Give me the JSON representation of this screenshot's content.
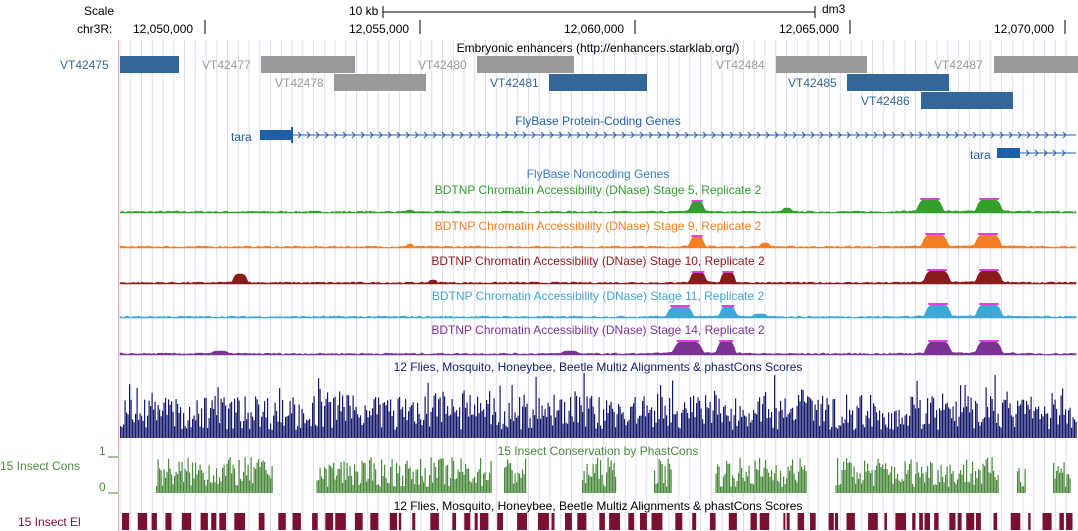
{
  "ruler": {
    "scale_label": "Scale",
    "chrom_label": "chr3R:",
    "scale_bar_label": "10 kb",
    "assembly": "dm3",
    "ticks": [
      "12,050,000",
      "12,055,000",
      "12,060,000",
      "12,065,000",
      "12,070,000"
    ]
  },
  "tracks": {
    "enhancers": {
      "title": "Embryonic enhancers (http://enhancers.starklab.org/)",
      "items": [
        {
          "name": "VT42475",
          "color": "#336699",
          "label": "VT42475"
        },
        {
          "name": "VT42477",
          "color": "#999999",
          "label": "VT42477"
        },
        {
          "name": "VT42478",
          "color": "#999999",
          "label": "VT42478"
        },
        {
          "name": "VT42480",
          "color": "#999999",
          "label": "VT42480"
        },
        {
          "name": "VT42481",
          "color": "#336699",
          "label": "VT42481"
        },
        {
          "name": "VT42484",
          "color": "#999999",
          "label": "VT42484"
        },
        {
          "name": "VT42485",
          "color": "#336699",
          "label": "VT42485"
        },
        {
          "name": "VT42486",
          "color": "#336699",
          "label": "VT42486"
        },
        {
          "name": "VT42487",
          "color": "#999999",
          "label": "VT42487"
        }
      ]
    },
    "coding_genes": {
      "title": "FlyBase Protein-Coding Genes",
      "color": "#1f5fa8",
      "genes": [
        {
          "label": "tara"
        },
        {
          "label": "tara"
        }
      ]
    },
    "noncoding_genes": {
      "title": "FlyBase Noncoding Genes",
      "color": "#3a7dc4"
    },
    "dnase": [
      {
        "title": "BDTNP Chromatin Accessibility (DNase) Stage 5, Replicate 2",
        "color": "#33a02c"
      },
      {
        "title": "BDTNP Chromatin Accessibility (DNase) Stage 9, Replicate 2",
        "color": "#f57f20"
      },
      {
        "title": "BDTNP Chromatin Accessibility (DNase) Stage 10, Replicate 2",
        "color": "#8b1a1a"
      },
      {
        "title": "BDTNP Chromatin Accessibility (DNase) Stage 11, Replicate 2",
        "color": "#3fa7d6"
      },
      {
        "title": "BDTNP Chromatin Accessibility (DNase) Stage 14, Replicate 2",
        "color": "#7b3294"
      }
    ],
    "multiz": {
      "title": "12 Flies, Mosquito, Honeybee, Beetle Multiz Alignments & phastCons Scores",
      "color": "#151a6b"
    },
    "phastcons": {
      "title": "15 Insect Conservation by PhastCons",
      "side_label": "15 Insect Cons",
      "axis_max": "1",
      "axis_min": "0",
      "color": "#4a8a3a"
    },
    "elements": {
      "title": "12 Flies, Mosquito, Honeybee, Beetle Multiz Alignments & phastCons Scores",
      "side_label": "15 Insect El",
      "color": "#7a1030"
    }
  }
}
